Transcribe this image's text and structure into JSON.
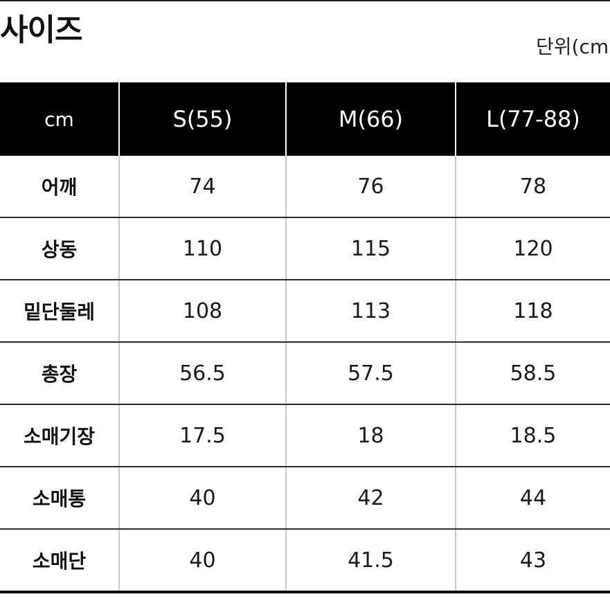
{
  "title": "사이즈",
  "unit_label": "단위(cm",
  "table": {
    "headers": [
      "cm",
      "S(55)",
      "M(66)",
      "L(77-88)"
    ],
    "rows": [
      {
        "label": "어깨",
        "values": [
          "74",
          "76",
          "78"
        ]
      },
      {
        "label": "상동",
        "values": [
          "110",
          "115",
          "120"
        ]
      },
      {
        "label": "밑단둘레",
        "values": [
          "108",
          "113",
          "118"
        ]
      },
      {
        "label": "총장",
        "values": [
          "56.5",
          "57.5",
          "58.5"
        ]
      },
      {
        "label": "소매기장",
        "values": [
          "17.5",
          "18",
          "18.5"
        ]
      },
      {
        "label": "소매통",
        "values": [
          "40",
          "42",
          "44"
        ]
      },
      {
        "label": "소매단",
        "values": [
          "40",
          "41.5",
          "43"
        ]
      }
    ]
  }
}
